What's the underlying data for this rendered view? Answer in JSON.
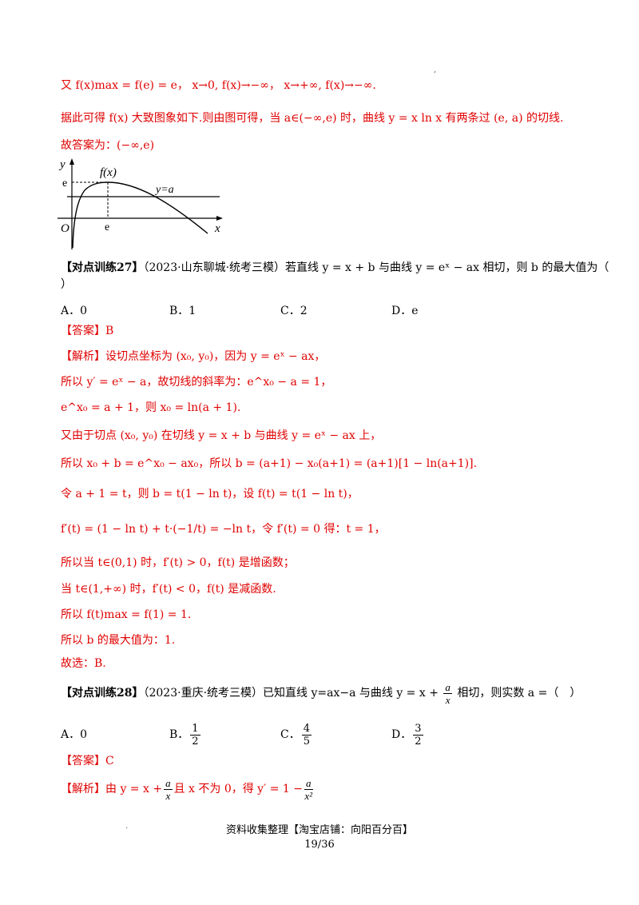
{
  "lines": {
    "l1": "又 f(x)max = f(e) = e， x→0, f(x)→−∞， x→+∞, f(x)→−∞.",
    "l2": "据此可得 f(x) 大致图象如下.则由图可得，当 a∈(−∞,e) 时，曲线 y = x ln x 有两条过 (e, a) 的切线.",
    "l3": "故答案为：(−∞,e)"
  },
  "graph": {
    "y_label": "y",
    "x_label": "x",
    "origin_label": "O",
    "e_y_label": "e",
    "e_x_label": "e",
    "curve_label": "f(x)",
    "line_label": "y=a"
  },
  "q27": {
    "tag": "【对点训练27】",
    "source": "（2023·山东聊城·统考三模）",
    "stem": "若直线 y = x + b 与曲线 y = eˣ − ax 相切，则 b 的最大值为（",
    "stem_end": "）",
    "options": [
      "A．0",
      "B．1",
      "C．2",
      "D．e"
    ],
    "answer": "【答案】B",
    "steps": [
      "【解析】设切点坐标为 (x₀, y₀)，因为 y = eˣ − ax，",
      "所以 y′ = eˣ − a，故切线的斜率为：e^x₀ − a = 1，",
      "e^x₀ = a + 1，则 x₀ = ln(a + 1).",
      "又由于切点 (x₀, y₀) 在切线 y = x + b 与曲线 y = eˣ − ax 上，",
      "所以 x₀ + b = e^x₀ − ax₀，所以 b = (a+1) − x₀(a+1) = (a+1)[1 − ln(a+1)].",
      "令 a + 1 = t，则 b = t(1 − ln t)，设 f(t) = t(1 − ln t)，",
      "f′(t) = (1 − ln t) + t·(−1/t) = −ln t，令 f′(t) = 0 得：t = 1，",
      "所以当 t∈(0,1) 时，f′(t) > 0，f(t) 是增函数；",
      "当 t∈(1,+∞) 时，f′(t) < 0，f(t) 是减函数.",
      "所以 f(t)max = f(1) = 1.",
      "所以 b 的最大值为：1.",
      "故选：B."
    ]
  },
  "q28": {
    "tag": "【对点训练28】",
    "source": "（2023·重庆·统考三模）",
    "stem_a": "已知直线 y=ax−a 与曲线 y = x +",
    "stem_b": "相切，则实数 a =（　）",
    "frac_num": "a",
    "frac_den": "x",
    "options": [
      {
        "label": "A．0",
        "num": "",
        "den": ""
      },
      {
        "label": "B．",
        "num": "1",
        "den": "2"
      },
      {
        "label": "C．",
        "num": "4",
        "den": "5"
      },
      {
        "label": "D．",
        "num": "3",
        "den": "2"
      }
    ],
    "answer": "【答案】C",
    "analysis_a": "【解析】由 y = x +",
    "analysis_b": "且 x 不为 0，得 y′ = 1 −",
    "analysis_num1": "a",
    "analysis_den1": "x",
    "analysis_num2": "a",
    "analysis_den2": "x²"
  },
  "footer": {
    "source": "资料收集整理【淘宝店铺：向阳百分百】",
    "page": "19/36"
  }
}
